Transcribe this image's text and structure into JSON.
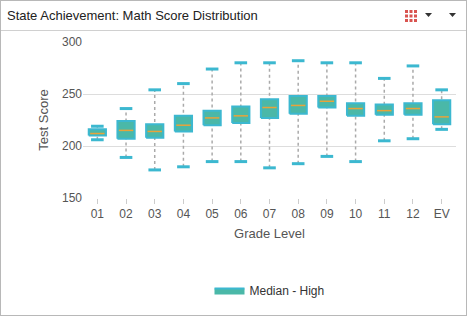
{
  "chart_data": {
    "type": "box",
    "title": "State Achievement: Math Score Distribution",
    "x_label": "Grade Level",
    "y_label": "Test Score",
    "categories": [
      "01",
      "02",
      "03",
      "04",
      "05",
      "06",
      "07",
      "08",
      "09",
      "10",
      "11",
      "12",
      "EV"
    ],
    "series": [
      {
        "name": "Median - High",
        "color": "#3cb8d0",
        "min": [
          206,
          189,
          177,
          180,
          185,
          185,
          179,
          183,
          190,
          185,
          205,
          207,
          216
        ],
        "q1": [
          210,
          207,
          208,
          214,
          220,
          222,
          227,
          231,
          237,
          229,
          230,
          230,
          221
        ],
        "median": [
          212,
          215,
          214,
          220,
          227,
          229,
          237,
          239,
          243,
          236,
          234,
          236,
          228
        ],
        "q3": [
          216,
          224,
          221,
          229,
          234,
          238,
          245,
          248,
          248,
          241,
          240,
          241,
          244
        ],
        "max": [
          219,
          236,
          254,
          260,
          274,
          280,
          280,
          282,
          280,
          280,
          265,
          277,
          254
        ]
      }
    ],
    "ylim": [
      150,
      300
    ],
    "yticks": [
      150,
      200,
      250,
      300
    ],
    "grid": true,
    "legend": "bottom"
  }
}
